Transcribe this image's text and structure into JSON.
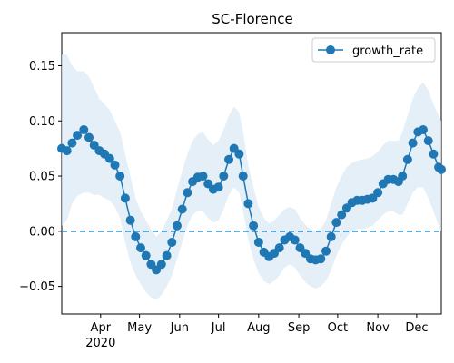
{
  "chart_data": {
    "type": "line",
    "title": "SC-Florence",
    "xlabel": "",
    "ylabel": "",
    "x_range": [
      "2020-03-02",
      "2020-12-20"
    ],
    "ylim": [
      -0.075,
      0.18
    ],
    "grid": false,
    "legend_position": "top-right",
    "legend": [
      "growth_rate"
    ],
    "colors": {
      "line": "#1f77b4",
      "band": "#dce9f5",
      "zero_line": "#1f77b4"
    },
    "x_ticks": [
      {
        "date": "2020-04-01",
        "label": "Apr",
        "sublabel": "2020"
      },
      {
        "date": "2020-05-01",
        "label": "May",
        "sublabel": ""
      },
      {
        "date": "2020-06-01",
        "label": "Jun",
        "sublabel": ""
      },
      {
        "date": "2020-07-01",
        "label": "Jul",
        "sublabel": ""
      },
      {
        "date": "2020-08-01",
        "label": "Aug",
        "sublabel": ""
      },
      {
        "date": "2020-09-01",
        "label": "Sep",
        "sublabel": ""
      },
      {
        "date": "2020-10-01",
        "label": "Oct",
        "sublabel": ""
      },
      {
        "date": "2020-11-01",
        "label": "Nov",
        "sublabel": ""
      },
      {
        "date": "2020-12-01",
        "label": "Dec",
        "sublabel": ""
      }
    ],
    "y_ticks": [
      {
        "value": -0.05,
        "label": "−0.05"
      },
      {
        "value": 0.0,
        "label": "0.00"
      },
      {
        "value": 0.05,
        "label": "0.05"
      },
      {
        "value": 0.1,
        "label": "0.10"
      },
      {
        "value": 0.15,
        "label": "0.15"
      }
    ],
    "hline": {
      "y": 0.0,
      "style": "dashed"
    },
    "series": [
      {
        "name": "growth_rate",
        "points": [
          {
            "x": "2020-03-02",
            "y": 0.075,
            "lo": 0.005,
            "hi": 0.16
          },
          {
            "x": "2020-03-06",
            "y": 0.073,
            "lo": 0.01,
            "hi": 0.16
          },
          {
            "x": "2020-03-10",
            "y": 0.08,
            "lo": 0.025,
            "hi": 0.15
          },
          {
            "x": "2020-03-14",
            "y": 0.087,
            "lo": 0.032,
            "hi": 0.145
          },
          {
            "x": "2020-03-19",
            "y": 0.092,
            "lo": 0.035,
            "hi": 0.145
          },
          {
            "x": "2020-03-23",
            "y": 0.085,
            "lo": 0.035,
            "hi": 0.14
          },
          {
            "x": "2020-03-27",
            "y": 0.078,
            "lo": 0.033,
            "hi": 0.13
          },
          {
            "x": "2020-03-31",
            "y": 0.073,
            "lo": 0.033,
            "hi": 0.12
          },
          {
            "x": "2020-04-04",
            "y": 0.07,
            "lo": 0.03,
            "hi": 0.115
          },
          {
            "x": "2020-04-08",
            "y": 0.066,
            "lo": 0.028,
            "hi": 0.11
          },
          {
            "x": "2020-04-12",
            "y": 0.06,
            "lo": 0.022,
            "hi": 0.1
          },
          {
            "x": "2020-04-16",
            "y": 0.05,
            "lo": 0.012,
            "hi": 0.09
          },
          {
            "x": "2020-04-20",
            "y": 0.03,
            "lo": -0.01,
            "hi": 0.07
          },
          {
            "x": "2020-04-24",
            "y": 0.01,
            "lo": -0.028,
            "hi": 0.05
          },
          {
            "x": "2020-04-28",
            "y": -0.005,
            "lo": -0.04,
            "hi": 0.03
          },
          {
            "x": "2020-05-02",
            "y": -0.015,
            "lo": -0.048,
            "hi": 0.018
          },
          {
            "x": "2020-05-06",
            "y": -0.022,
            "lo": -0.055,
            "hi": 0.01
          },
          {
            "x": "2020-05-10",
            "y": -0.03,
            "lo": -0.06,
            "hi": 0.002
          },
          {
            "x": "2020-05-14",
            "y": -0.035,
            "lo": -0.062,
            "hi": -0.005
          },
          {
            "x": "2020-05-18",
            "y": -0.03,
            "lo": -0.058,
            "hi": 0.0
          },
          {
            "x": "2020-05-22",
            "y": -0.022,
            "lo": -0.05,
            "hi": 0.01
          },
          {
            "x": "2020-05-26",
            "y": -0.01,
            "lo": -0.04,
            "hi": 0.02
          },
          {
            "x": "2020-05-30",
            "y": 0.005,
            "lo": -0.025,
            "hi": 0.038
          },
          {
            "x": "2020-06-03",
            "y": 0.02,
            "lo": -0.01,
            "hi": 0.055
          },
          {
            "x": "2020-06-07",
            "y": 0.035,
            "lo": 0.005,
            "hi": 0.07
          },
          {
            "x": "2020-06-11",
            "y": 0.045,
            "lo": 0.015,
            "hi": 0.082
          },
          {
            "x": "2020-06-15",
            "y": 0.049,
            "lo": 0.018,
            "hi": 0.088
          },
          {
            "x": "2020-06-19",
            "y": 0.05,
            "lo": 0.018,
            "hi": 0.09
          },
          {
            "x": "2020-06-23",
            "y": 0.043,
            "lo": 0.012,
            "hi": 0.083
          },
          {
            "x": "2020-06-27",
            "y": 0.038,
            "lo": 0.008,
            "hi": 0.078
          },
          {
            "x": "2020-07-01",
            "y": 0.04,
            "lo": 0.01,
            "hi": 0.082
          },
          {
            "x": "2020-07-05",
            "y": 0.05,
            "lo": 0.02,
            "hi": 0.092
          },
          {
            "x": "2020-07-09",
            "y": 0.065,
            "lo": 0.033,
            "hi": 0.105
          },
          {
            "x": "2020-07-13",
            "y": 0.075,
            "lo": 0.04,
            "hi": 0.113
          },
          {
            "x": "2020-07-17",
            "y": 0.07,
            "lo": 0.035,
            "hi": 0.108
          },
          {
            "x": "2020-07-20",
            "y": 0.05,
            "lo": 0.018,
            "hi": 0.09
          },
          {
            "x": "2020-07-24",
            "y": 0.025,
            "lo": -0.008,
            "hi": 0.06
          },
          {
            "x": "2020-07-28",
            "y": 0.005,
            "lo": -0.025,
            "hi": 0.04
          },
          {
            "x": "2020-08-01",
            "y": -0.01,
            "lo": -0.038,
            "hi": 0.022
          },
          {
            "x": "2020-08-05",
            "y": -0.019,
            "lo": -0.045,
            "hi": 0.012
          },
          {
            "x": "2020-08-09",
            "y": -0.023,
            "lo": -0.048,
            "hi": 0.007
          },
          {
            "x": "2020-08-13",
            "y": -0.02,
            "lo": -0.045,
            "hi": 0.01
          },
          {
            "x": "2020-08-17",
            "y": -0.015,
            "lo": -0.04,
            "hi": 0.015
          },
          {
            "x": "2020-08-21",
            "y": -0.008,
            "lo": -0.033,
            "hi": 0.02
          },
          {
            "x": "2020-08-25",
            "y": -0.005,
            "lo": -0.03,
            "hi": 0.022
          },
          {
            "x": "2020-08-29",
            "y": -0.008,
            "lo": -0.033,
            "hi": 0.02
          },
          {
            "x": "2020-09-02",
            "y": -0.015,
            "lo": -0.04,
            "hi": 0.012
          },
          {
            "x": "2020-09-06",
            "y": -0.02,
            "lo": -0.046,
            "hi": 0.006
          },
          {
            "x": "2020-09-10",
            "y": -0.025,
            "lo": -0.05,
            "hi": 0.002
          },
          {
            "x": "2020-09-14",
            "y": -0.026,
            "lo": -0.052,
            "hi": 0.0
          },
          {
            "x": "2020-09-18",
            "y": -0.025,
            "lo": -0.05,
            "hi": 0.002
          },
          {
            "x": "2020-09-22",
            "y": -0.018,
            "lo": -0.045,
            "hi": 0.01
          },
          {
            "x": "2020-09-26",
            "y": -0.005,
            "lo": -0.035,
            "hi": 0.025
          },
          {
            "x": "2020-09-30",
            "y": 0.008,
            "lo": -0.022,
            "hi": 0.04
          },
          {
            "x": "2020-10-04",
            "y": 0.015,
            "lo": -0.012,
            "hi": 0.05
          },
          {
            "x": "2020-10-08",
            "y": 0.021,
            "lo": -0.005,
            "hi": 0.058
          },
          {
            "x": "2020-10-12",
            "y": 0.026,
            "lo": 0.0,
            "hi": 0.062
          },
          {
            "x": "2020-10-16",
            "y": 0.028,
            "lo": 0.002,
            "hi": 0.064
          },
          {
            "x": "2020-10-20",
            "y": 0.028,
            "lo": 0.002,
            "hi": 0.065
          },
          {
            "x": "2020-10-24",
            "y": 0.029,
            "lo": 0.003,
            "hi": 0.066
          },
          {
            "x": "2020-10-28",
            "y": 0.03,
            "lo": 0.005,
            "hi": 0.068
          },
          {
            "x": "2020-11-01",
            "y": 0.035,
            "lo": 0.01,
            "hi": 0.072
          },
          {
            "x": "2020-11-05",
            "y": 0.043,
            "lo": 0.015,
            "hi": 0.078
          },
          {
            "x": "2020-11-09",
            "y": 0.047,
            "lo": 0.018,
            "hi": 0.082
          },
          {
            "x": "2020-11-13",
            "y": 0.047,
            "lo": 0.018,
            "hi": 0.082
          },
          {
            "x": "2020-11-17",
            "y": 0.045,
            "lo": 0.015,
            "hi": 0.082
          },
          {
            "x": "2020-11-20",
            "y": 0.05,
            "lo": 0.015,
            "hi": 0.09
          },
          {
            "x": "2020-11-24",
            "y": 0.065,
            "lo": 0.025,
            "hi": 0.105
          },
          {
            "x": "2020-11-28",
            "y": 0.08,
            "lo": 0.035,
            "hi": 0.12
          },
          {
            "x": "2020-12-02",
            "y": 0.09,
            "lo": 0.04,
            "hi": 0.13
          },
          {
            "x": "2020-12-06",
            "y": 0.092,
            "lo": 0.04,
            "hi": 0.135
          },
          {
            "x": "2020-12-10",
            "y": 0.082,
            "lo": 0.03,
            "hi": 0.128
          },
          {
            "x": "2020-12-14",
            "y": 0.07,
            "lo": 0.018,
            "hi": 0.115
          },
          {
            "x": "2020-12-18",
            "y": 0.058,
            "lo": 0.005,
            "hi": 0.105
          },
          {
            "x": "2020-12-20",
            "y": 0.056,
            "lo": 0.0,
            "hi": 0.1
          }
        ]
      }
    ]
  }
}
